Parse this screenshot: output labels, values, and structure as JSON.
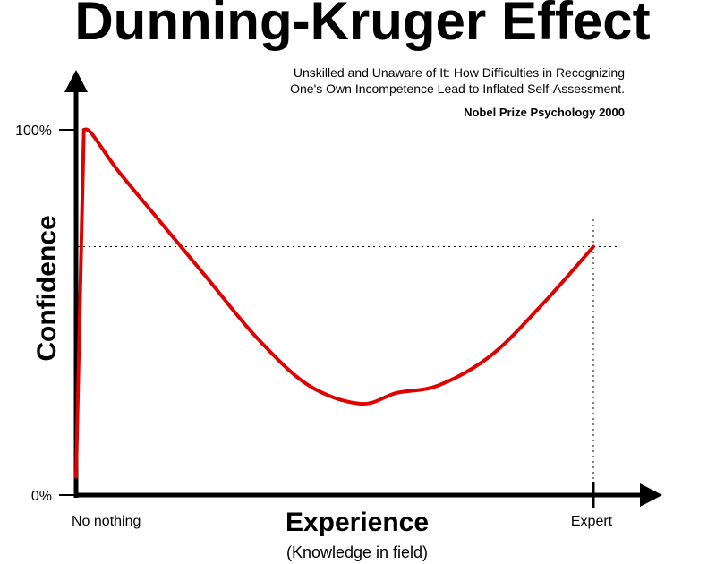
{
  "chart_data": {
    "type": "line",
    "title": "Dunning-Kruger Effect",
    "subtitle": [
      "Unskilled and Unaware of It: How Difficulties in Recognizing",
      "One's Own Incompetence Lead to Inflated Self-Assessment."
    ],
    "note": "Nobel Prize Psychology  2000",
    "ylabel": "Confidence",
    "xlabel": "Experience",
    "xlabel_sub": "(Knowledge in field)",
    "y_ticks": [
      "0%",
      "100%"
    ],
    "x_ticks": [
      "No nothing",
      "Expert"
    ],
    "xlim": [
      0,
      100
    ],
    "ylim": [
      0,
      100
    ],
    "series": [
      {
        "color": "#e00000",
        "x": [
          0,
          1.5,
          3,
          8,
          15,
          25,
          35,
          45,
          55,
          62,
          70,
          80,
          90,
          100
        ],
        "y": [
          5,
          100,
          99,
          89,
          77,
          60,
          43,
          30,
          25,
          28,
          30,
          38,
          52,
          68
        ]
      }
    ],
    "reference_lines": {
      "expert_confidence": 68
    },
    "grid": false
  }
}
